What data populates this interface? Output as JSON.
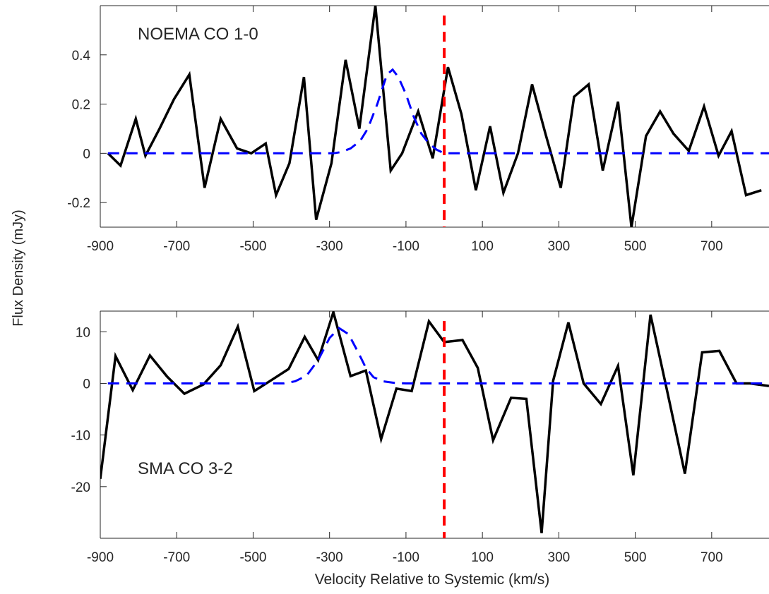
{
  "figure": {
    "ylabel": "Flux Density (mJy)",
    "xlabel": "Velocity Relative to Systemic (km/s)"
  },
  "colors": {
    "data_line": "#000000",
    "fit_line": "#0000ff",
    "systemic_line": "#ff0000",
    "axis": "#262626"
  },
  "chart_data": [
    {
      "type": "line",
      "panel_label": "NOEMA CO 1-0",
      "xlim": [
        -900,
        850
      ],
      "ylim": [
        -0.3,
        0.6
      ],
      "xticks": [
        -900,
        -700,
        -500,
        -300,
        -100,
        100,
        300,
        500,
        700
      ],
      "xtick_labels": [
        "-900",
        "-700",
        "-500",
        "-300",
        "-100",
        "100",
        "300",
        "500",
        "700"
      ],
      "yticks": [
        -0.2,
        0,
        0.2,
        0.4
      ],
      "ytick_labels": [
        "-0.2",
        "0",
        "0.2",
        "0.4"
      ],
      "grid": false,
      "vline_x": 0,
      "series": [
        {
          "style": "solid",
          "x": [
            -880,
            -847,
            -807,
            -782,
            -745,
            -707,
            -667,
            -627,
            -585,
            -542,
            -505,
            -467,
            -440,
            -405,
            -367,
            -335,
            -295,
            -258,
            -222,
            -180,
            -140,
            -110,
            -68,
            -30,
            10,
            45,
            83,
            120,
            155,
            193,
            230,
            265,
            305,
            340,
            378,
            415,
            455,
            490,
            528,
            565,
            600,
            640,
            680,
            718,
            752,
            790,
            830
          ],
          "y": [
            0.0,
            -0.05,
            0.14,
            -0.01,
            0.1,
            0.22,
            0.32,
            -0.14,
            0.14,
            0.02,
            0.0,
            0.04,
            -0.17,
            -0.04,
            0.31,
            -0.27,
            -0.04,
            0.38,
            0.1,
            0.6,
            -0.07,
            0.0,
            0.17,
            -0.02,
            0.35,
            0.16,
            -0.15,
            0.11,
            -0.16,
            0.0,
            0.28,
            0.08,
            -0.14,
            0.23,
            0.28,
            -0.07,
            0.21,
            -0.3,
            0.07,
            0.17,
            0.08,
            0.01,
            0.19,
            -0.01,
            0.09,
            -0.17,
            -0.15
          ]
        },
        {
          "style": "dashed",
          "x": [
            -880,
            -520,
            -290,
            -270,
            -245,
            -220,
            -200,
            -175,
            -150,
            -135,
            -120,
            -100,
            -80,
            -60,
            -40,
            -20,
            0,
            50,
            850
          ],
          "y": [
            0.0,
            0.0,
            0.0,
            0.005,
            0.02,
            0.05,
            0.1,
            0.2,
            0.32,
            0.34,
            0.31,
            0.24,
            0.15,
            0.08,
            0.04,
            0.015,
            0.0,
            0.0,
            0.0
          ]
        }
      ]
    },
    {
      "type": "line",
      "panel_label": "SMA CO 3-2",
      "xlim": [
        -900,
        850
      ],
      "ylim": [
        -30,
        14
      ],
      "xticks": [
        -900,
        -700,
        -500,
        -300,
        -100,
        100,
        300,
        500,
        700
      ],
      "xtick_labels": [
        "-900",
        "-700",
        "-500",
        "-300",
        "-100",
        "100",
        "300",
        "500",
        "700"
      ],
      "yticks": [
        -20,
        -10,
        0,
        10
      ],
      "ytick_labels": [
        "-20",
        "-10",
        "0",
        "10"
      ],
      "grid": false,
      "vline_x": 0,
      "series": [
        {
          "style": "solid",
          "x": [
            -900,
            -860,
            -815,
            -770,
            -725,
            -680,
            -630,
            -585,
            -540,
            -497,
            -455,
            -407,
            -365,
            -330,
            -290,
            -245,
            -205,
            -165,
            -125,
            -85,
            -40,
            0,
            48,
            88,
            128,
            175,
            215,
            255,
            285,
            325,
            365,
            410,
            455,
            495,
            540,
            585,
            630,
            675,
            720,
            765,
            800,
            850
          ],
          "y": [
            -18.5,
            5.3,
            -1.3,
            5.4,
            1.3,
            -2.0,
            -0.2,
            3.5,
            11.0,
            -1.5,
            0.5,
            2.8,
            9.0,
            4.5,
            13.8,
            1.4,
            2.5,
            -10.8,
            -1.0,
            -1.5,
            12.0,
            8.0,
            8.4,
            3.0,
            -11.0,
            -2.8,
            -3.0,
            -29.0,
            0.5,
            11.8,
            0.0,
            -4.0,
            3.4,
            -17.8,
            13.3,
            -2.0,
            -17.5,
            6.0,
            6.3,
            0.0,
            0.0,
            -0.5
          ]
        },
        {
          "style": "dashed",
          "x": [
            -880,
            -420,
            -390,
            -360,
            -330,
            -300,
            -275,
            -250,
            -225,
            -205,
            -185,
            -160,
            -130,
            -100,
            -60,
            0,
            850
          ],
          "y": [
            0.0,
            0.0,
            0.4,
            1.5,
            4.5,
            8.8,
            10.7,
            9.5,
            6.0,
            3.0,
            1.2,
            0.4,
            0.1,
            0.0,
            0.0,
            0.0,
            0.0
          ]
        }
      ]
    }
  ]
}
